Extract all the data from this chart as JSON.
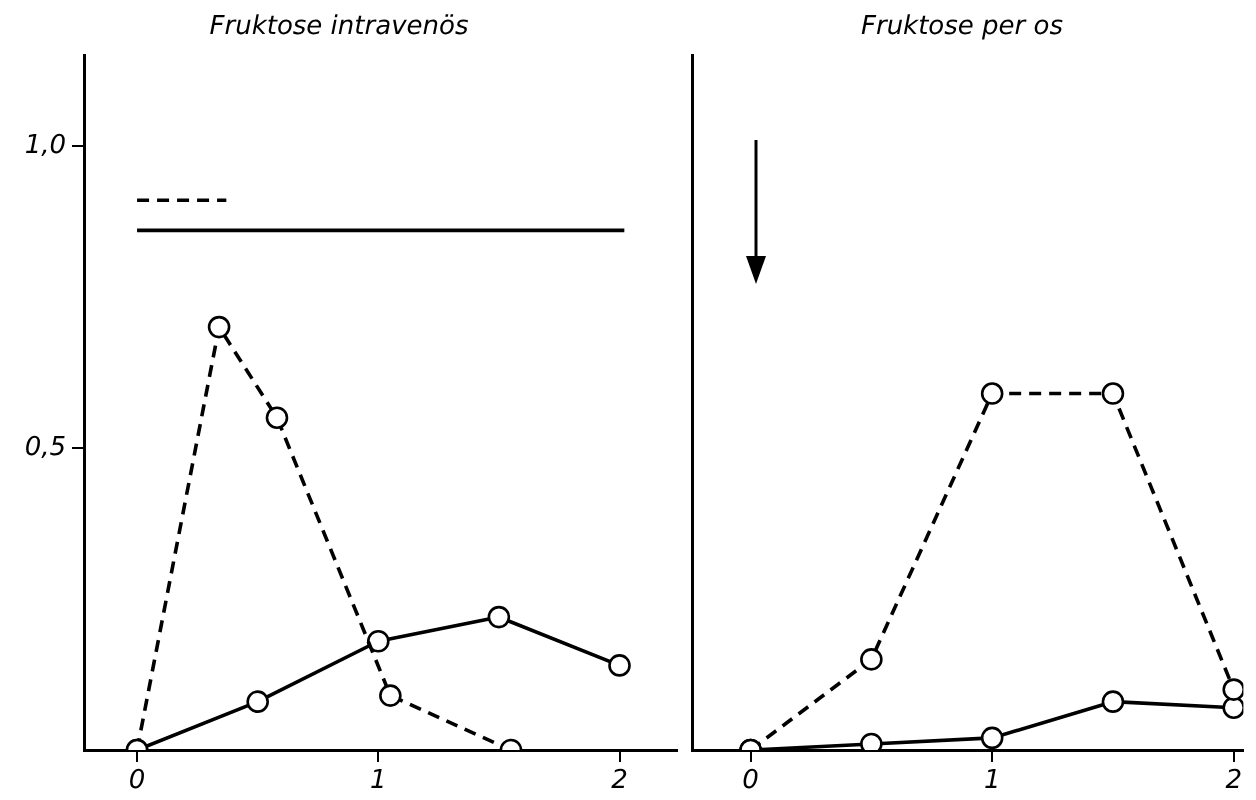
{
  "chart_data": [
    {
      "type": "line",
      "title": "Fruktose intravenös",
      "marker": "circle",
      "grid": false,
      "xlim": [
        -0.22,
        2.24
      ],
      "xticks": [
        0,
        1,
        2
      ],
      "ylim": [
        0,
        1.15
      ],
      "yticks": [
        {
          "value": 0.5,
          "label": "0,5"
        },
        {
          "value": 1.0,
          "label": "1,0"
        }
      ],
      "series": [
        {
          "color": "#000000",
          "line_style": "dashed",
          "x": [
            0,
            0.34,
            0.58,
            1.05,
            1.55
          ],
          "values": [
            0,
            0.7,
            0.55,
            0.09,
            0
          ]
        },
        {
          "color": "#000000",
          "line_style": "solid",
          "x": [
            0,
            0.5,
            1.0,
            1.5,
            2.0
          ],
          "values": [
            0,
            0.08,
            0.18,
            0.22,
            0.14
          ]
        },
        {
          "color": "#000000",
          "line_style": "dashed",
          "marker": "none",
          "x": [
            0,
            0.37
          ],
          "values": [
            0.91,
            0.91
          ]
        },
        {
          "color": "#000000",
          "line_style": "solid",
          "marker": "none",
          "x": [
            0,
            2.02
          ],
          "values": [
            0.86,
            0.86
          ]
        }
      ]
    },
    {
      "type": "line",
      "title": "Fruktose per os",
      "marker": "circle",
      "grid": false,
      "tick_labels": "x",
      "xlim": [
        -0.24,
        2.04
      ],
      "xticks": [
        0,
        1,
        2
      ],
      "ylim": [
        0,
        1.15
      ],
      "series": [
        {
          "color": "#000000",
          "line_style": "dashed",
          "x": [
            0,
            0.5,
            1.0,
            1.5,
            2.0
          ],
          "values": [
            0,
            0.15,
            0.59,
            0.59,
            0.1
          ]
        },
        {
          "color": "#000000",
          "line_style": "solid",
          "x": [
            0,
            0.5,
            1.0,
            1.5,
            2.0
          ],
          "values": [
            0,
            0.01,
            0.02,
            0.08,
            0.07
          ]
        }
      ]
    }
  ]
}
